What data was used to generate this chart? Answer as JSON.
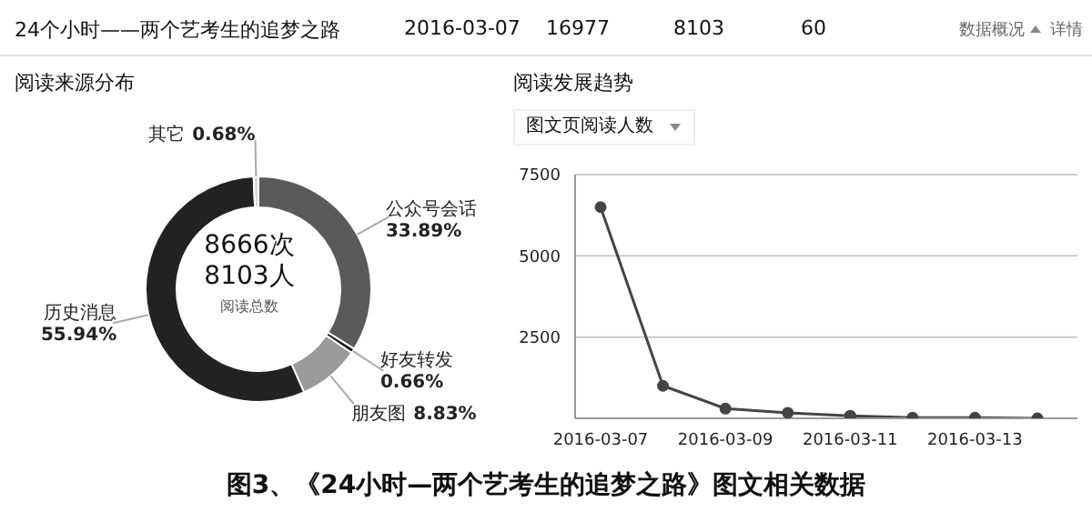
{
  "chart_data": [
    {
      "type": "other",
      "title": "24个小时——两个艺考生的追梦之路",
      "annotations": [
        "2016-03-07",
        "16977",
        "8103",
        "60",
        "数据概况",
        "详情"
      ]
    },
    {
      "type": "donut",
      "title": "阅读来源分布",
      "categories": [
        "公众号会话",
        "好友转发",
        "朋友图",
        "历史消息",
        "其它"
      ],
      "values": [
        33.89,
        0.66,
        8.83,
        55.94,
        0.68
      ],
      "colors": [
        "#5a5a5a",
        "#1a1a1a",
        "#9a9a9a",
        "#222222",
        "#d8d8d8"
      ],
      "value_labels": [
        "33.89%",
        "0.66%",
        "8.83%",
        "55.94%",
        "0.68%"
      ],
      "annotations": [
        "8666次",
        "8103人",
        "阅读总数"
      ]
    },
    {
      "type": "line",
      "title": "阅读发展趋势",
      "ylabel": "图文页阅读人数",
      "categories": [
        "2016-03-07",
        null,
        "2016-03-09",
        null,
        "2016-03-11",
        null,
        "2016-03-13",
        null
      ],
      "series": [
        {
          "color": "#444444",
          "values": [
            6500,
            1000,
            300,
            170,
            80,
            20,
            20,
            0
          ]
        }
      ],
      "ylim": [
        0,
        7500
      ],
      "yticks": [
        2500,
        5000,
        7500
      ],
      "grid": "y",
      "marker": "circle"
    },
    {
      "type": "other",
      "title": "图3、《24小时—两个艺考生的追梦之路》图文相关数据"
    }
  ]
}
